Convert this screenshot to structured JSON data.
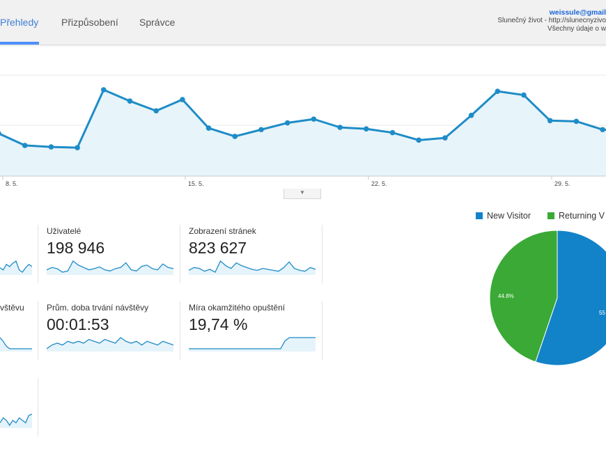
{
  "header": {
    "tabs": [
      {
        "label": "Přehledy",
        "active": true
      },
      {
        "label": "Přizpůsobení",
        "active": false
      },
      {
        "label": "Správce",
        "active": false
      }
    ],
    "account": {
      "email": "weissule@gmail",
      "property": "Slunečný život - http://slunecnyzivo",
      "view": "Všechny údaje o w"
    }
  },
  "chart_data": [
    {
      "type": "line",
      "x_labels": [
        "8. 5.",
        "15. 5.",
        "22. 5.",
        "29. 5."
      ],
      "values": [
        42,
        26,
        24,
        23,
        100,
        85,
        72,
        87,
        49,
        38,
        47,
        56,
        61,
        50,
        48,
        43,
        33,
        36,
        66,
        98,
        93,
        59,
        58,
        47,
        45
      ],
      "grid": true,
      "color": "#1e8cc7",
      "fill": "#e7f4fa"
    },
    {
      "type": "pie",
      "legend": [
        "New Visitor",
        "Returning V"
      ],
      "values": [
        55.2,
        44.8
      ],
      "labels": [
        "55",
        "44.8%"
      ],
      "colors": [
        "#1283c9",
        "#3aa935"
      ],
      "legend_position": "top"
    }
  ],
  "metrics": [
    {
      "label": "",
      "value": "",
      "spark": [
        52,
        50,
        55,
        53,
        56,
        58,
        50,
        48,
        52,
        55,
        53
      ]
    },
    {
      "label": "Uživatelé",
      "value": "198 946",
      "spark": [
        40,
        44,
        42,
        36,
        38,
        55,
        48,
        44,
        40,
        42,
        45,
        40,
        38,
        42,
        44,
        52,
        40,
        38,
        46,
        48,
        42,
        40,
        50,
        44,
        42
      ]
    },
    {
      "label": "Zobrazení stránek",
      "value": "823 627",
      "spark": [
        40,
        46,
        44,
        38,
        42,
        36,
        60,
        50,
        44,
        56,
        50,
        46,
        42,
        40,
        44,
        42,
        40,
        38,
        46,
        58,
        44,
        40,
        38,
        46,
        42
      ]
    },
    {
      "label": "vštěvu",
      "value": "",
      "spark": [
        55,
        52,
        48,
        46,
        46,
        46,
        46,
        46,
        46,
        46,
        46
      ]
    },
    {
      "label": "Prům. doba trvání návštěvy",
      "value": "00:01:53",
      "spark": [
        44,
        46,
        47,
        46,
        48,
        47,
        48,
        47,
        49,
        48,
        47,
        49,
        48,
        47,
        50,
        48,
        47,
        48,
        46,
        48,
        47,
        46,
        48,
        47,
        46
      ]
    },
    {
      "label": "Míra okamžitého opuštění",
      "value": "19,74 %",
      "spark": [
        20,
        20,
        20,
        20,
        20,
        20,
        20,
        20,
        20,
        20,
        20,
        20,
        20,
        20,
        20,
        20,
        20,
        20,
        20,
        20,
        20,
        20,
        48,
        60,
        60,
        60,
        60,
        60,
        60,
        60
      ]
    },
    {
      "label": "",
      "value": "",
      "spark": [
        48,
        52,
        50,
        46,
        50,
        48,
        52,
        50,
        48,
        54,
        55
      ]
    }
  ]
}
